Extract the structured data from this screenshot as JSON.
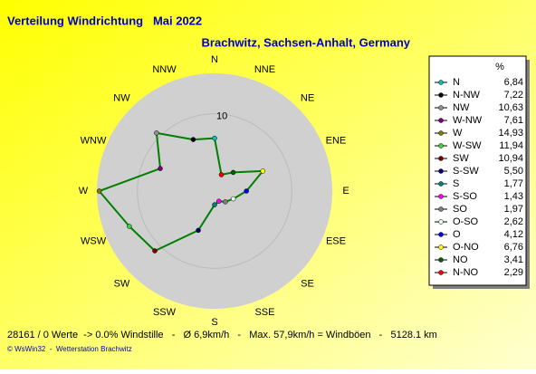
{
  "chart_data": {
    "type": "polar",
    "title": "Verteilung Windrichtung   Mai 2022",
    "subtitle": "Brachwitz, Sachsen-Anhalt, Germany",
    "categories": [
      "N",
      "NNE",
      "NE",
      "ENE",
      "E",
      "ESE",
      "SE",
      "SSE",
      "S",
      "SSW",
      "SW",
      "WSW",
      "W",
      "WNW",
      "NW",
      "NNW"
    ],
    "legend_title": "%",
    "directions": [
      "N",
      "N-NW",
      "NW",
      "W-NW",
      "W",
      "W-SW",
      "SW",
      "S-SW",
      "S",
      "S-SO",
      "SO",
      "O-SO",
      "O",
      "O-NO",
      "NO",
      "N-NO"
    ],
    "values": [
      6.84,
      7.22,
      10.63,
      7.61,
      14.93,
      11.94,
      10.94,
      5.5,
      1.77,
      1.43,
      1.97,
      2.62,
      4.12,
      6.76,
      3.41,
      2.29
    ],
    "value_labels": [
      "6,84",
      "7,22",
      "10,63",
      "7,61",
      "14,93",
      "11,94",
      "10,94",
      "5,50",
      "1,77",
      "1,43",
      "1,97",
      "2,62",
      "4,12",
      "6,76",
      "3,41",
      "2,29"
    ],
    "colors": [
      "#00c0c0",
      "#000000",
      "#909090",
      "#800080",
      "#808000",
      "#40d040",
      "#800000",
      "#000080",
      "#008080",
      "#ff00ff",
      "#808080",
      "#e0ffe0",
      "#0000ff",
      "#ffff00",
      "#006000",
      "#ff0000"
    ],
    "line_color": "#008000",
    "rlim": [
      0,
      15
    ],
    "rticks": [
      10
    ],
    "footer": "28161 / 0 Werte  -> 0.0% Windstille   -   Ø 6,9km/h   -   Max. 57,9km/h = Windböen   -   5128.1 km",
    "credit": "© WsWin32  -  Wetterstation Brachwitz"
  }
}
